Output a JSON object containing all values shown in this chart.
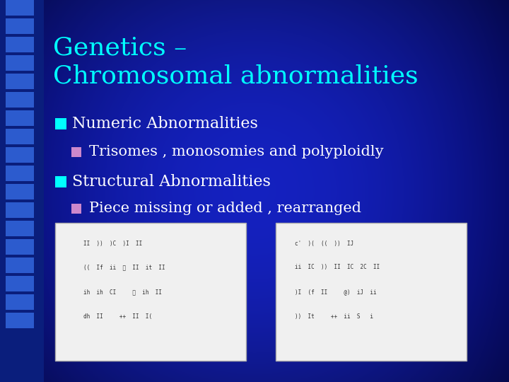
{
  "title_line1": "Genetics –",
  "title_line2": "Chromosomal abnormalities",
  "title_color": "#00FFFF",
  "bullet1_text": "Numeric Abnormalities",
  "bullet1_color": "#FFFFFF",
  "sub_bullet1_text": "Trisomes , monosomies and polyploidly",
  "sub_bullet1_color": "#FFFFFF",
  "bullet2_text": "Structural Abnormalities",
  "bullet2_color": "#FFFFFF",
  "sub_bullet2_text": "Piece missing or added , rearranged",
  "sub_bullet2_color": "#FFFFFF",
  "bullet_marker_color": "#00FFFF",
  "sub_bullet_marker_color": "#CC88CC",
  "image_box_color": "#f0f0f0",
  "figsize": [
    7.2,
    5.4
  ],
  "dpi": 100,
  "bg_left_color": "#2233CC",
  "bg_center_color": "#000066",
  "bg_right_color": "#2233CC",
  "left_strip_dark": "#000030",
  "left_strip_tile": "#2244BB"
}
